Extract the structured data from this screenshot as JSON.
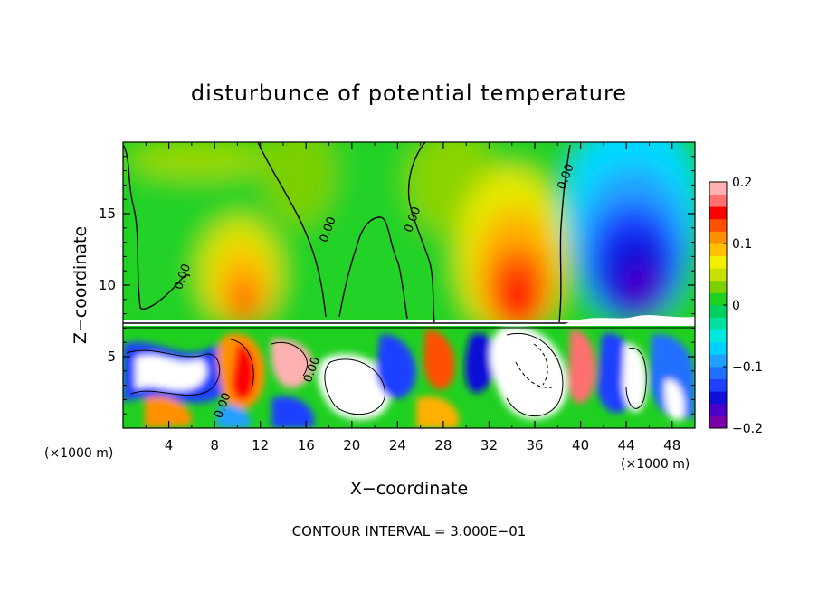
{
  "chart_data": {
    "type": "heatmap",
    "title": "disturbunce of potential temperature",
    "xlabel": "X−coordinate",
    "ylabel": "Z−coordinate",
    "x_unit_left": "(×1000 m)",
    "x_unit_right": "(×1000 m)",
    "footer": "CONTOUR INTERVAL = 3.000E−01",
    "xlim": [
      0,
      50
    ],
    "ylim": [
      0,
      20
    ],
    "x_ticks": [
      4,
      8,
      12,
      16,
      20,
      24,
      28,
      32,
      36,
      40,
      44,
      48
    ],
    "y_ticks": [
      5,
      10,
      15
    ],
    "colorbar": {
      "min": -0.2,
      "max": 0.2,
      "tick_values": [
        0.2,
        0.1,
        0,
        -0.1,
        -0.2
      ],
      "tick_labels": [
        "0.2",
        "0.1",
        "0",
        "−0.1",
        "−0.2"
      ],
      "colors": [
        "#7a00a8",
        "#4a00c8",
        "#1010d8",
        "#1e40ff",
        "#2070ff",
        "#20a0ff",
        "#00d0ff",
        "#00e8e0",
        "#00e0a0",
        "#00d060",
        "#20d020",
        "#7ad000",
        "#c8e000",
        "#f0f000",
        "#ffc000",
        "#ff9000",
        "#ff5000",
        "#ff0000",
        "#ff7070",
        "#ffb0b0"
      ]
    },
    "contour_labels": [
      {
        "text": "0.00",
        "x": 5.5,
        "z": 10.5
      },
      {
        "text": "0.00",
        "x": 18.2,
        "z": 13.8
      },
      {
        "text": "0.00",
        "x": 25.6,
        "z": 14.5
      },
      {
        "text": "0.00",
        "x": 39.0,
        "z": 17.5
      },
      {
        "text": "0.00",
        "x": 16.8,
        "z": 4.0
      },
      {
        "text": "0.00",
        "x": 9.0,
        "z": 1.5
      }
    ],
    "notes": "Color-filled contour field; estimated structure: positive anomalies (warm) near x≈10 and x≈34, negative anomalies (cold) near x≈44 in the upper layer (z>7.5); highly turbulent mixed field below z≈7.3."
  }
}
